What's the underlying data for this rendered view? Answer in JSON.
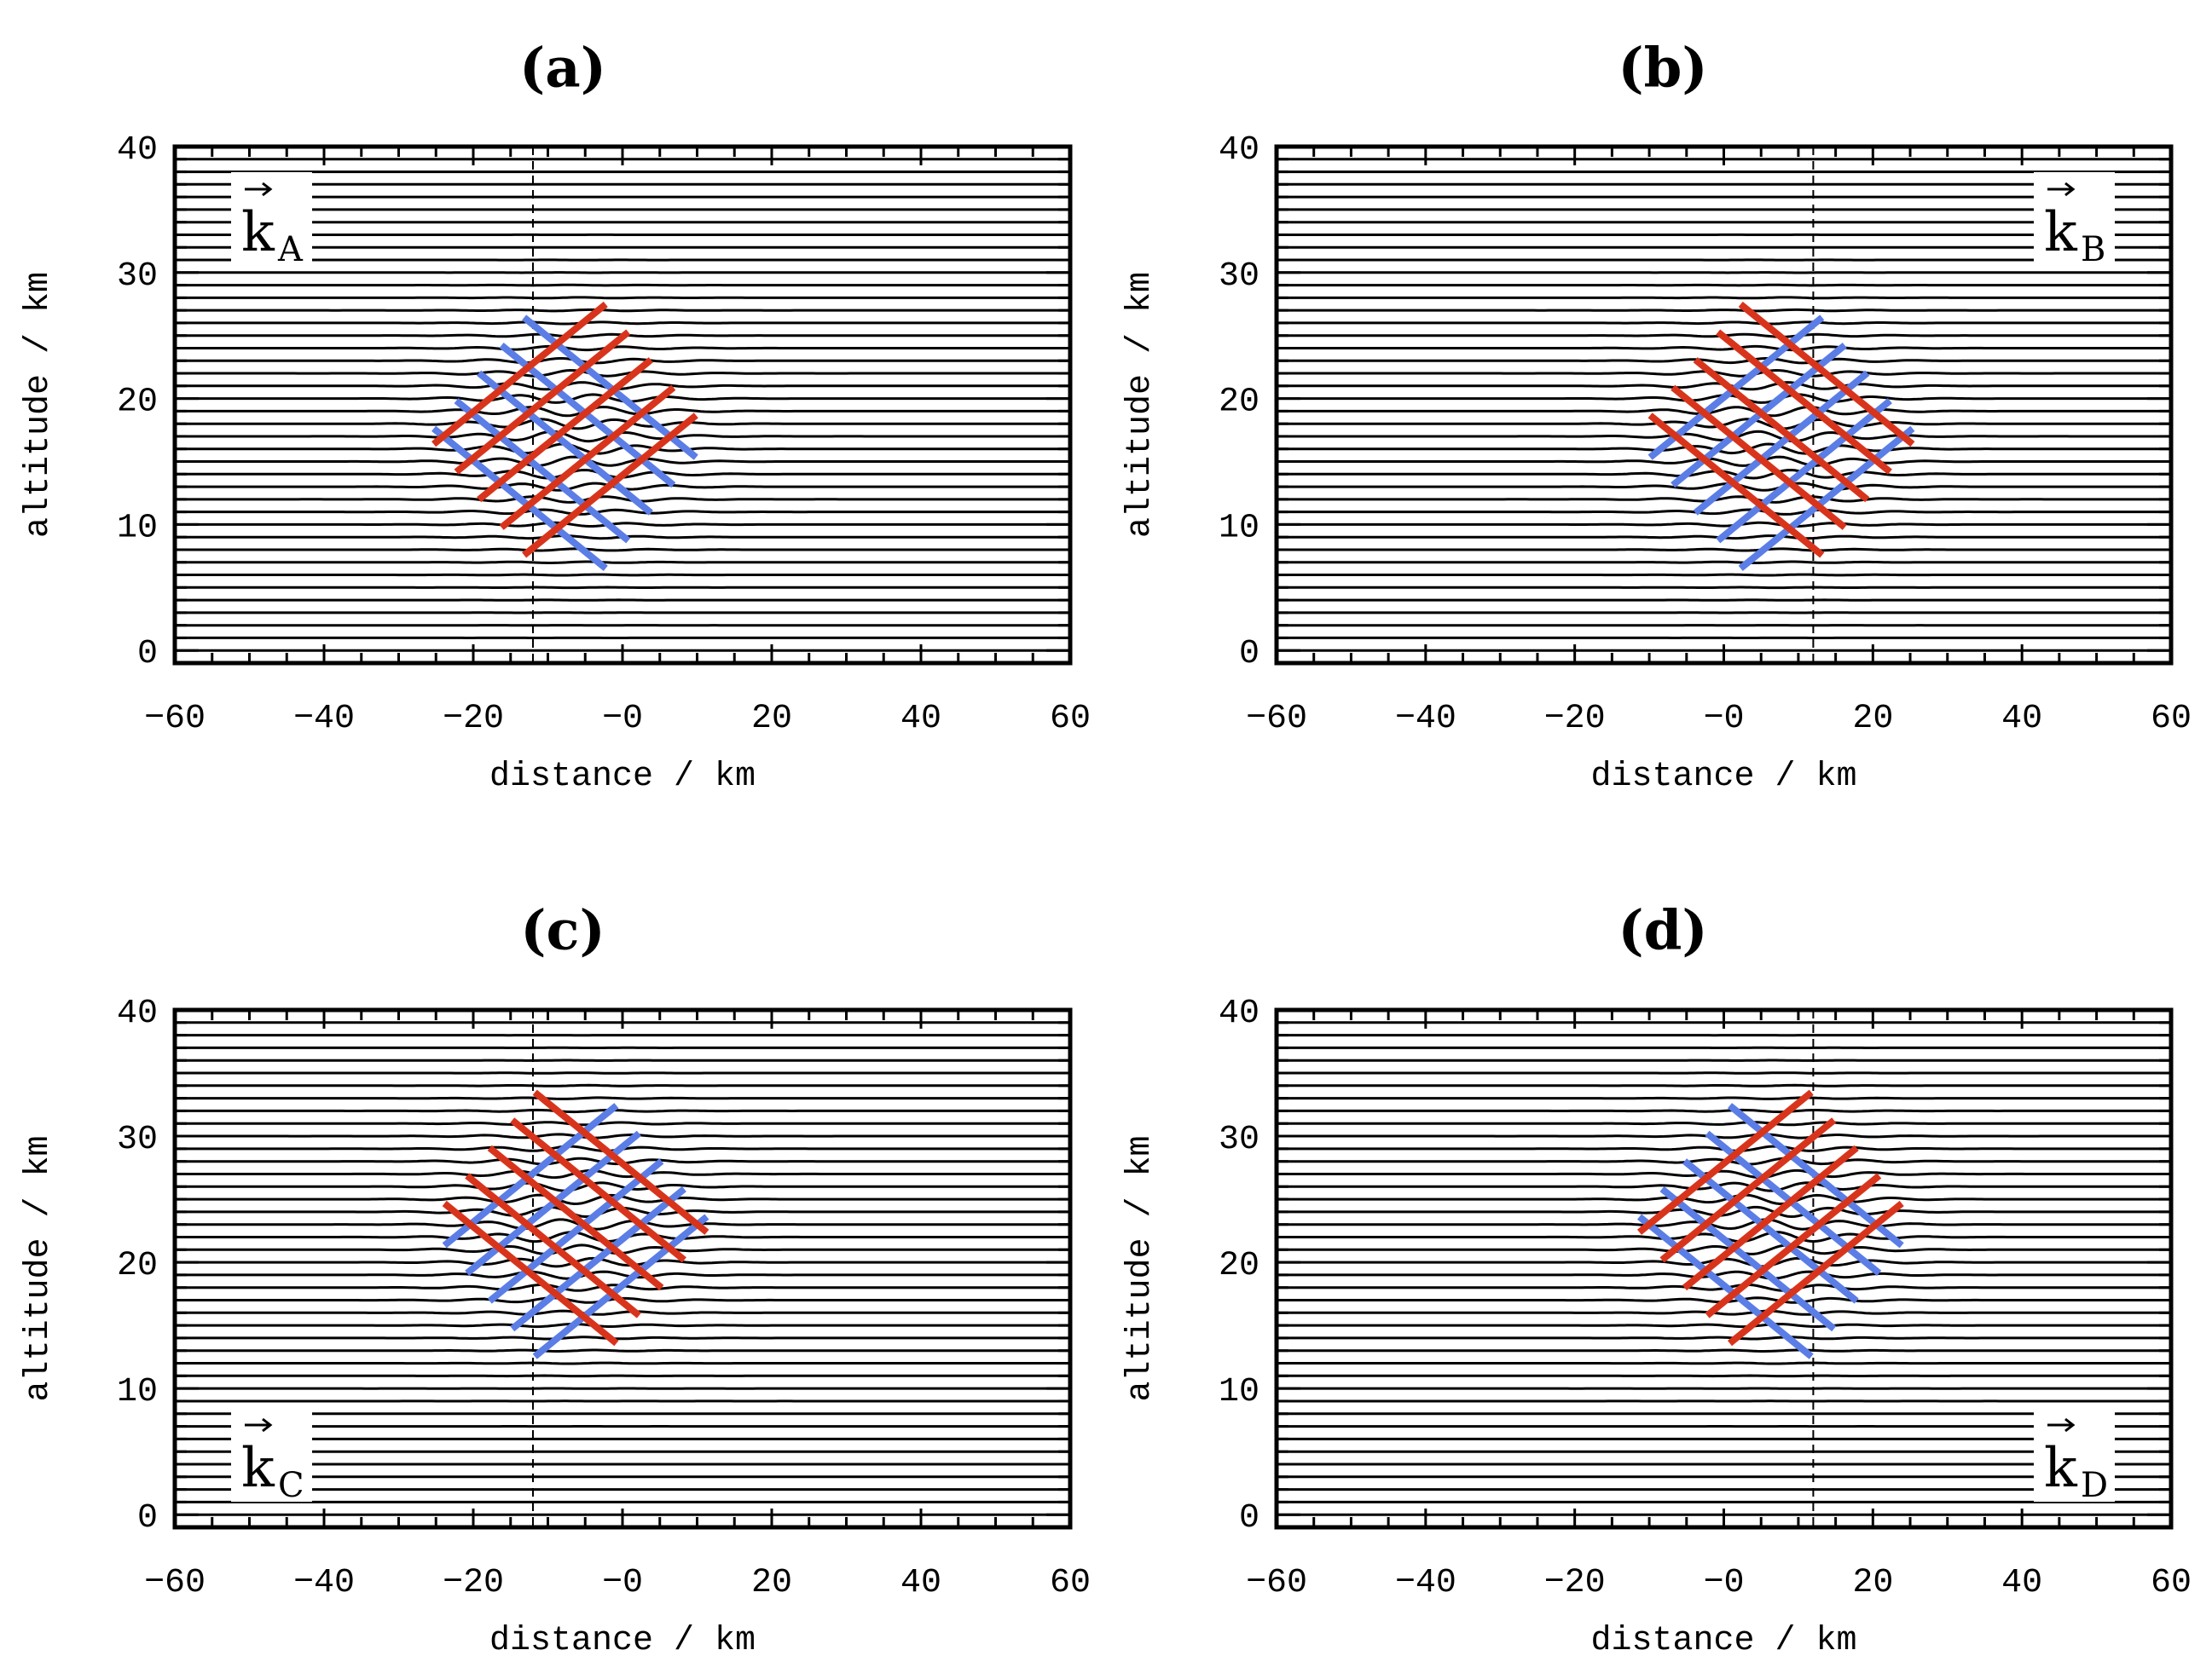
{
  "figure": {
    "panels": [
      {
        "id": "a",
        "label": "(a)",
        "k_label": "k",
        "k_sub": "A",
        "k_position": "top-left"
      },
      {
        "id": "b",
        "label": "(b)",
        "k_label": "k",
        "k_sub": "B",
        "k_position": "top-right"
      },
      {
        "id": "c",
        "label": "(c)",
        "k_label": "k",
        "k_sub": "C",
        "k_position": "bottom-left"
      },
      {
        "id": "d",
        "label": "(d)",
        "k_label": "k",
        "k_sub": "D",
        "k_position": "bottom-right"
      }
    ]
  },
  "chart_data": [
    {
      "type": "line",
      "title": "(a)",
      "xlabel": "distance / km",
      "ylabel": "altitude / km",
      "xlim": [
        -60,
        60
      ],
      "ylim": [
        -1,
        40
      ],
      "xticks": [
        -60,
        -40,
        -20,
        0,
        20,
        40,
        60
      ],
      "xtick_labels": [
        "−60",
        "−40",
        "−20",
        "−0",
        "20",
        "40",
        "60"
      ],
      "yticks": [
        0,
        10,
        20,
        30,
        40
      ],
      "ytick_labels": [
        "0",
        "10",
        "20",
        "30",
        "40"
      ],
      "dashed_line_x": -12,
      "wave_packet": {
        "center_x": -7,
        "center_z": 17,
        "horizontal_wavelength_km": 10,
        "vertical_wavelength_km": 3.4,
        "sigma_x_km": 14,
        "sigma_z_km": 7,
        "amplitude_km": 0.4
      },
      "phase_front_center": {
        "x": -7,
        "z": 17
      },
      "red_lines_direction": "slope-up-right",
      "blue_lines_direction": "slope-down-right",
      "annotation": "k_A"
    },
    {
      "type": "line",
      "title": "(b)",
      "xlabel": "distance / km",
      "ylabel": "altitude / km",
      "xlim": [
        -60,
        60
      ],
      "ylim": [
        -1,
        40
      ],
      "xticks": [
        -60,
        -40,
        -20,
        0,
        20,
        40,
        60
      ],
      "xtick_labels": [
        "−60",
        "−40",
        "−20",
        "−0",
        "20",
        "40",
        "60"
      ],
      "yticks": [
        0,
        10,
        20,
        30,
        40
      ],
      "ytick_labels": [
        "0",
        "10",
        "20",
        "30",
        "40"
      ],
      "dashed_line_x": 12,
      "wave_packet": {
        "center_x": 7,
        "center_z": 17,
        "horizontal_wavelength_km": 10,
        "vertical_wavelength_km": 3.4,
        "sigma_x_km": 14,
        "sigma_z_km": 7,
        "amplitude_km": 0.4
      },
      "phase_front_center": {
        "x": 7,
        "z": 17
      },
      "red_lines_direction": "slope-down-right",
      "blue_lines_direction": "slope-up-right",
      "annotation": "k_B"
    },
    {
      "type": "line",
      "title": "(c)",
      "xlabel": "distance / km",
      "ylabel": "altitude / km",
      "xlim": [
        -60,
        60
      ],
      "ylim": [
        -1,
        40
      ],
      "xticks": [
        -60,
        -40,
        -20,
        0,
        20,
        40,
        60
      ],
      "xtick_labels": [
        "−60",
        "−40",
        "−20",
        "−0",
        "20",
        "40",
        "60"
      ],
      "yticks": [
        0,
        10,
        20,
        30,
        40
      ],
      "ytick_labels": [
        "0",
        "10",
        "20",
        "30",
        "40"
      ],
      "dashed_line_x": -12,
      "wave_packet": {
        "center_x": -7,
        "center_z": 23,
        "horizontal_wavelength_km": 10,
        "vertical_wavelength_km": 3.4,
        "sigma_x_km": 14,
        "sigma_z_km": 7,
        "amplitude_km": 0.4
      },
      "phase_front_center": {
        "x": -7,
        "z": 23
      },
      "red_lines_direction": "slope-down-right",
      "blue_lines_direction": "slope-up-right",
      "annotation": "k_C"
    },
    {
      "type": "line",
      "title": "(d)",
      "xlabel": "distance / km",
      "ylabel": "altitude / km",
      "xlim": [
        -60,
        60
      ],
      "ylim": [
        -1,
        40
      ],
      "xticks": [
        -60,
        -40,
        -20,
        0,
        20,
        40,
        60
      ],
      "xtick_labels": [
        "−60",
        "−40",
        "−20",
        "−0",
        "20",
        "40",
        "60"
      ],
      "yticks": [
        0,
        10,
        20,
        30,
        40
      ],
      "ytick_labels": [
        "0",
        "10",
        "20",
        "30",
        "40"
      ],
      "dashed_line_x": 12,
      "wave_packet": {
        "center_x": 7,
        "center_z": 23,
        "horizontal_wavelength_km": 10,
        "vertical_wavelength_km": 3.4,
        "sigma_x_km": 14,
        "sigma_z_km": 7,
        "amplitude_km": 0.4
      },
      "phase_front_center": {
        "x": 7,
        "z": 23
      },
      "red_lines_direction": "slope-up-right",
      "blue_lines_direction": "slope-down-right",
      "annotation": "k_D"
    }
  ],
  "colors": {
    "axes": "#000000",
    "streamlines": "#000000",
    "red_phase": "#d8341c",
    "blue_phase": "#5b7de6"
  }
}
